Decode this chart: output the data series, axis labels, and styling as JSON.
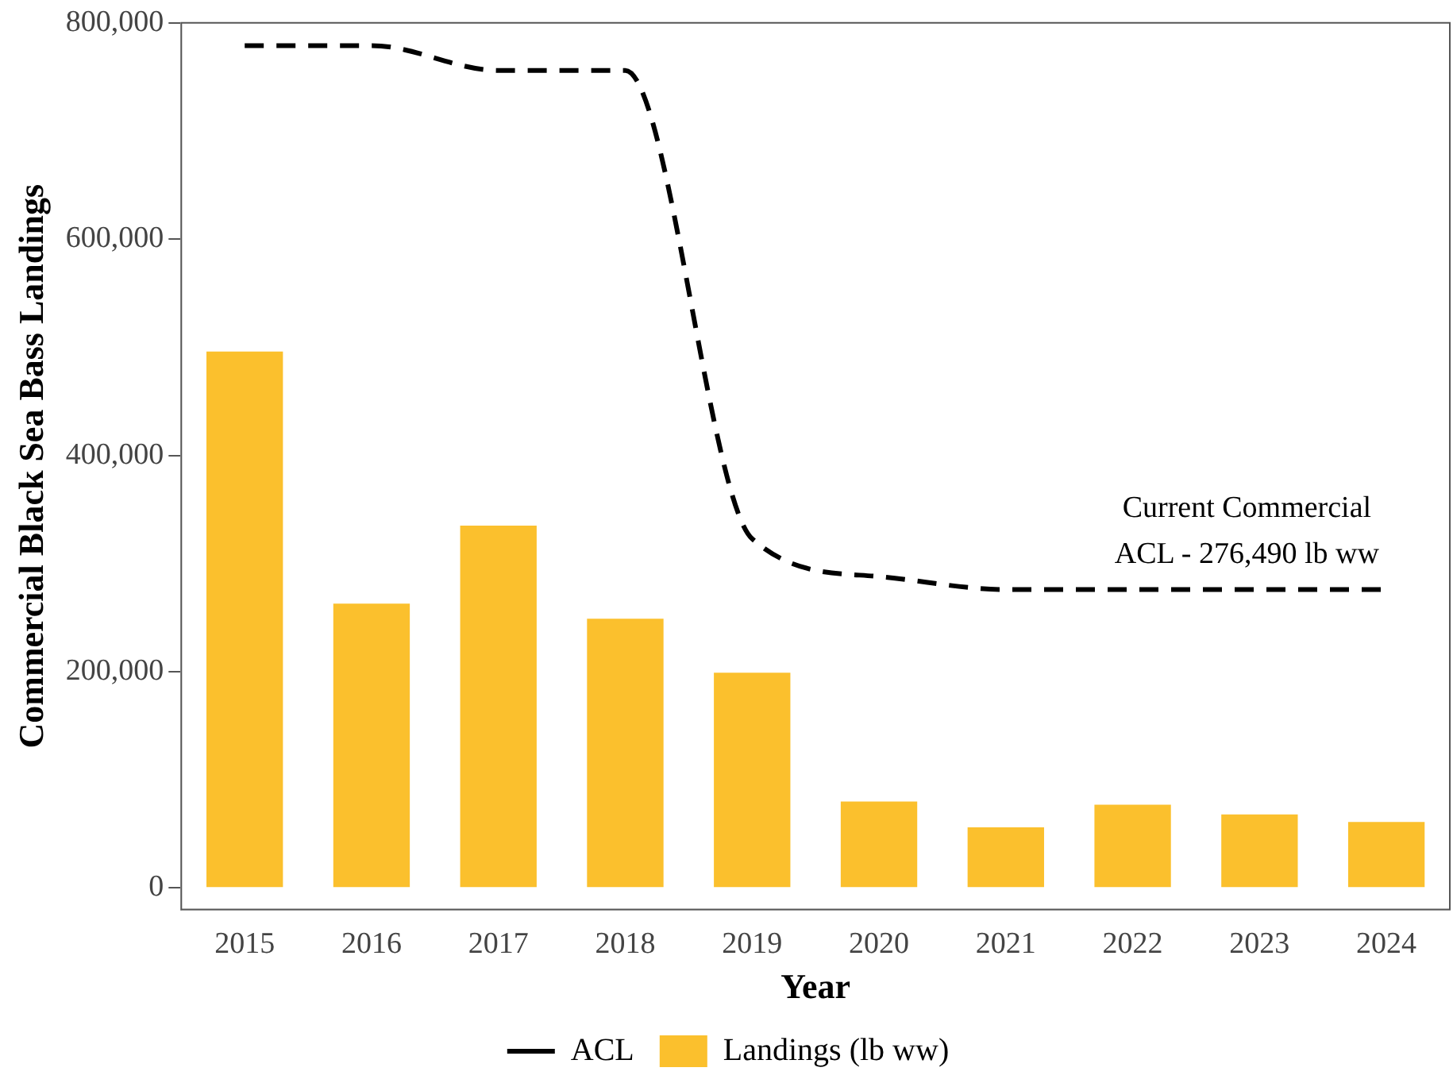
{
  "chart_data": {
    "type": "bar",
    "xlabel": "Year",
    "ylabel": "Commercial Black Sea Bass Landings",
    "categories": [
      "2015",
      "2016",
      "2017",
      "2018",
      "2019",
      "2020",
      "2021",
      "2022",
      "2023",
      "2024"
    ],
    "series": [
      {
        "name": "ACL",
        "type": "line",
        "color": "#000000",
        "line_style": "dashed",
        "values": [
          779000,
          779000,
          756000,
          756000,
          323000,
          288000,
          276000,
          276000,
          276000,
          276000
        ]
      },
      {
        "name": "Landings (lb ww)",
        "color": "#fbc02d",
        "values": [
          496000,
          263000,
          335000,
          249000,
          199000,
          80000,
          56000,
          77000,
          68000,
          61000
        ]
      }
    ],
    "ylim": [
      -20000,
      800000
    ],
    "yticks": [
      0,
      {
        "value": 200000,
        "label": "200,000"
      },
      {
        "value": 400000,
        "label": "400,000"
      },
      {
        "value": 600000,
        "label": "600,000"
      },
      {
        "value": 800000,
        "label": "800,000"
      }
    ],
    "grid": false,
    "legend": "bottom",
    "marker": "none",
    "annotations": [
      "Current Commercial\nACL - 276,490 lb ww"
    ]
  }
}
